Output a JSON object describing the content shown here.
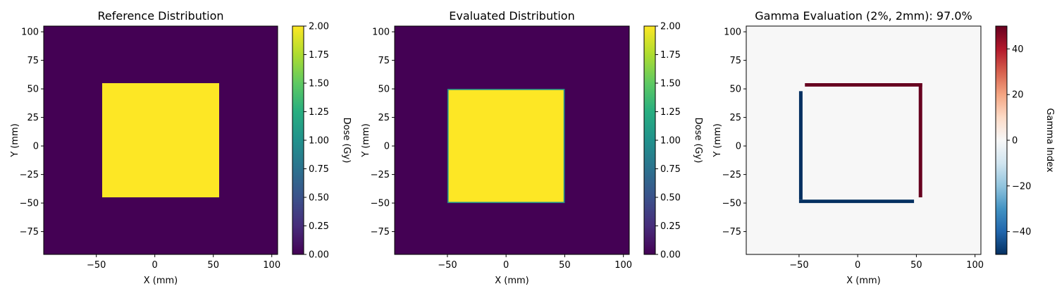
{
  "chart_data": [
    {
      "type": "heatmap",
      "title": "Reference Distribution",
      "xlabel": "X (mm)",
      "ylabel": "Y (mm)",
      "xlim": [
        -95,
        105
      ],
      "ylim": [
        -95,
        105
      ],
      "xticks": [
        -50,
        0,
        50,
        100
      ],
      "yticks": [
        -75,
        -50,
        -25,
        0,
        25,
        50,
        75,
        100
      ],
      "background_value": 0,
      "regions": [
        {
          "x_range": [
            -45,
            55
          ],
          "y_range": [
            -45,
            55
          ],
          "value": 2.0
        }
      ],
      "colorbar": {
        "label": "Dose (Gy)",
        "colormap": "viridis",
        "range": [
          0,
          2
        ],
        "ticks": [
          "0.00",
          "0.25",
          "0.50",
          "0.75",
          "1.00",
          "1.25",
          "1.50",
          "1.75",
          "2.00"
        ]
      }
    },
    {
      "type": "heatmap",
      "title": "Evaluated Distribution",
      "xlabel": "X (mm)",
      "ylabel": "Y (mm)",
      "xlim": [
        -95,
        105
      ],
      "ylim": [
        -95,
        105
      ],
      "xticks": [
        -50,
        0,
        50,
        100
      ],
      "yticks": [
        -75,
        -50,
        -25,
        0,
        25,
        50,
        75,
        100
      ],
      "background_value": 0,
      "regions": [
        {
          "x_range": [
            -50,
            50
          ],
          "y_range": [
            -50,
            50
          ],
          "value": 1.0
        },
        {
          "x_range": [
            -49,
            49
          ],
          "y_range": [
            -49,
            49
          ],
          "value": 2.0
        }
      ],
      "colorbar": {
        "label": "Dose (Gy)",
        "colormap": "viridis",
        "range": [
          0,
          2
        ],
        "ticks": [
          "0.00",
          "0.25",
          "0.50",
          "0.75",
          "1.00",
          "1.25",
          "1.50",
          "1.75",
          "2.00"
        ]
      }
    },
    {
      "type": "heatmap",
      "title": "Gamma Evaluation (2%, 2mm): 97.0%",
      "xlabel": "X (mm)",
      "ylabel": "Y (mm)",
      "xlim": [
        -95,
        105
      ],
      "ylim": [
        -95,
        105
      ],
      "xticks": [
        -50,
        0,
        50,
        100
      ],
      "yticks": [
        -75,
        -50,
        -25,
        0,
        25,
        50,
        75,
        100
      ],
      "background_value": 0,
      "regions": [
        {
          "x_range": [
            -45,
            55
          ],
          "y_range": [
            52,
            55
          ],
          "value": 50
        },
        {
          "x_range": [
            52,
            55
          ],
          "y_range": [
            -45,
            55
          ],
          "value": 50
        },
        {
          "x_range": [
            -50,
            -47
          ],
          "y_range": [
            -47,
            48
          ],
          "value": -50
        },
        {
          "x_range": [
            -50,
            48
          ],
          "y_range": [
            -50,
            -47
          ],
          "value": -50
        }
      ],
      "colorbar": {
        "label": "Gamma Index",
        "colormap": "RdBu_r",
        "range": [
          -50,
          50
        ],
        "ticks": [
          "-40",
          "-20",
          "0",
          "20",
          "40"
        ]
      }
    }
  ]
}
